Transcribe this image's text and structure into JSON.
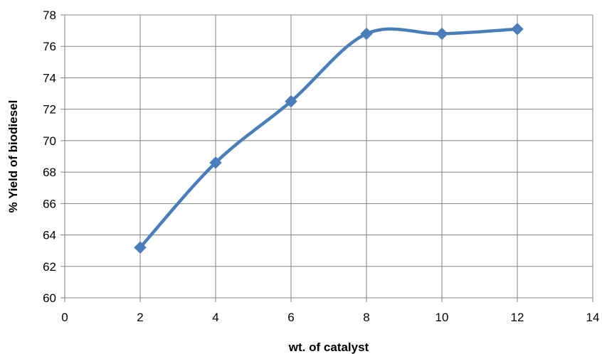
{
  "chart_data": {
    "type": "line",
    "title": "",
    "xlabel": "wt. of catalyst",
    "ylabel": "% Yield of biodiesel",
    "xlim": [
      0,
      14
    ],
    "ylim": [
      60,
      78
    ],
    "x_ticks": [
      0,
      2,
      4,
      6,
      8,
      10,
      12,
      14
    ],
    "y_ticks": [
      60,
      62,
      64,
      66,
      68,
      70,
      72,
      74,
      76,
      78
    ],
    "grid": true,
    "legend": "none",
    "smoothed": true,
    "marker": "diamond",
    "series_color": "#4A7EBB",
    "series": [
      {
        "x": [
          2,
          4,
          6,
          8,
          10,
          12
        ],
        "y": [
          63.2,
          68.6,
          72.5,
          76.8,
          76.8,
          77.1
        ]
      }
    ]
  }
}
